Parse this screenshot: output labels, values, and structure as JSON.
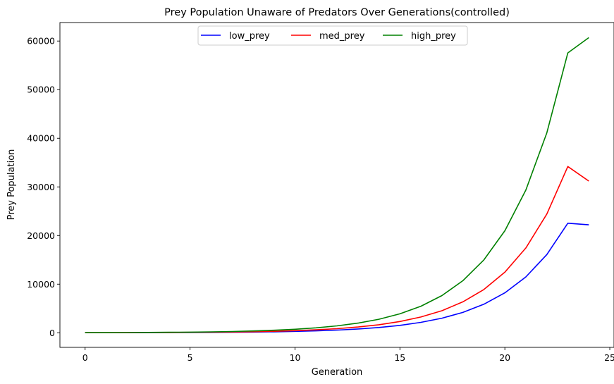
{
  "chart_data": {
    "type": "line",
    "title": "Prey Population Unaware of Predators Over Generations(controlled)",
    "xlabel": "Generation",
    "ylabel": "Prey Population",
    "xlim": [
      -1.2,
      25.2
    ],
    "ylim": [
      -3000,
      63800
    ],
    "xticks": [
      0,
      5,
      10,
      15,
      20,
      25
    ],
    "yticks": [
      0,
      10000,
      20000,
      30000,
      40000,
      50000,
      60000
    ],
    "grid": false,
    "legend": {
      "position": "top-center",
      "columns": 3
    },
    "x": [
      0,
      1,
      2,
      3,
      4,
      5,
      6,
      7,
      8,
      9,
      10,
      11,
      12,
      13,
      14,
      15,
      16,
      17,
      18,
      19,
      20,
      21,
      22,
      23,
      24
    ],
    "series": [
      {
        "name": "low_prey",
        "color": "#0000ff",
        "values": [
          10,
          14,
          19,
          27,
          38,
          53,
          74,
          103,
          145,
          203,
          284,
          397,
          556,
          779,
          1090,
          1526,
          2137,
          2992,
          4188,
          5864,
          8209,
          11493,
          16090,
          22526,
          22200
        ]
      },
      {
        "name": "med_prey",
        "color": "#ff0000",
        "values": [
          15,
          21,
          29,
          41,
          57,
          80,
          112,
          157,
          220,
          308,
          431,
          603,
          844,
          1182,
          1655,
          2317,
          3244,
          4541,
          6357,
          8900,
          12460,
          17444,
          24422,
          34190,
          31200
        ]
      },
      {
        "name": "high_prey",
        "color": "#008000",
        "values": [
          25,
          35,
          49,
          69,
          96,
          135,
          189,
          264,
          370,
          518,
          725,
          1015,
          1421,
          1990,
          2786,
          3900,
          5460,
          7644,
          10702,
          14982,
          20975,
          29365,
          41111,
          57556,
          60700
        ]
      }
    ]
  }
}
